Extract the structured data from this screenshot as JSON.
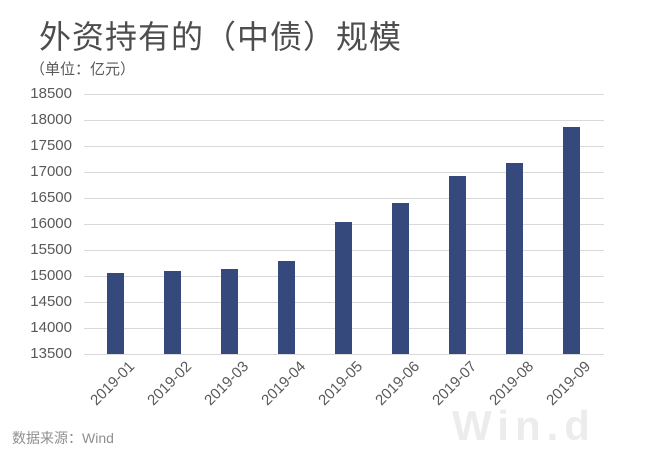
{
  "header": {
    "title": "外资持有的（中债）规模",
    "unit_label": "（单位：亿元）"
  },
  "footer": {
    "source_label": "数据来源：Wind",
    "watermark_text": "Win.d"
  },
  "colors": {
    "bar": "#36497d",
    "gridline": "#d9d9d9",
    "title_text": "#4d4d4d",
    "axis_text": "#595959",
    "source_text": "#8f8f8f",
    "watermark_text": "#ececec",
    "background": "#ffffff"
  },
  "chart_data": {
    "type": "bar",
    "title": "外资持有的（中债）规模",
    "subtitle": "（单位：亿元）",
    "unit": "亿元",
    "categories": [
      "2019-01",
      "2019-02",
      "2019-03",
      "2019-04",
      "2019-05",
      "2019-06",
      "2019-07",
      "2019-08",
      "2019-09"
    ],
    "values": [
      15050,
      15100,
      15130,
      15280,
      16040,
      16400,
      16920,
      17180,
      17860
    ],
    "ylabel": "",
    "xlabel": "",
    "ylim": [
      13500,
      18500
    ],
    "yticks": [
      13500,
      14000,
      14500,
      15000,
      15500,
      16000,
      16500,
      17000,
      17500,
      18000,
      18500
    ],
    "grid": true,
    "legend_position": "none",
    "bar_color": "#36497d",
    "source": "数据来源：Wind"
  }
}
